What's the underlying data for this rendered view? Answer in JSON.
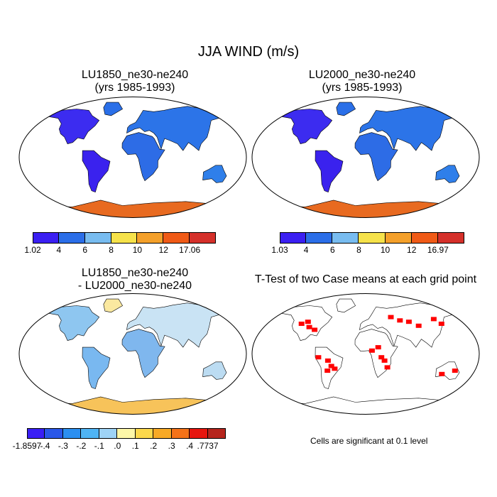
{
  "figure": {
    "title": "JJA WIND (m/s)",
    "panels": [
      {
        "id": "p1",
        "title": "LU1850_ne30-ne240\n(yrs 1985-1993)",
        "colorbar": {
          "labels": [
            "1.02",
            "4",
            "6",
            "8",
            "10",
            "12",
            "17.06"
          ],
          "colors": [
            "#3b1ff2",
            "#2b6ee8",
            "#78bcf0",
            "#f6e24a",
            "#f4a02a",
            "#f05a16",
            "#d5302a"
          ]
        }
      },
      {
        "id": "p2",
        "title": "LU2000_ne30-ne240\n(yrs 1985-1993)",
        "colorbar": {
          "labels": [
            "1.03",
            "4",
            "6",
            "8",
            "10",
            "12",
            "16.97"
          ],
          "colors": [
            "#3b1ff2",
            "#2b6ee8",
            "#78bcf0",
            "#f6e24a",
            "#f4a02a",
            "#f05a16",
            "#d5302a"
          ]
        }
      },
      {
        "id": "p3",
        "title": "LU1850_ne30-ne240\n- LU2000_ne30-ne240",
        "colorbar": {
          "labels": [
            "-1.8597",
            "-.4",
            "-.3",
            "-.2",
            "-.1",
            ".0",
            ".1",
            ".2",
            ".3",
            ".4",
            ".7737"
          ],
          "colors": [
            "#3a1ff5",
            "#2a57e8",
            "#2b8ff0",
            "#4fb4f4",
            "#9ed3f6",
            "#fdf7a8",
            "#fcd84c",
            "#f8a925",
            "#f47218",
            "#e7150e",
            "#b5241c"
          ]
        }
      },
      {
        "id": "p4",
        "title": "T-Test of two Case means at each grid point",
        "note": "Cells are significant at 0.1 level",
        "significant_color": "#ff0000"
      }
    ]
  }
}
